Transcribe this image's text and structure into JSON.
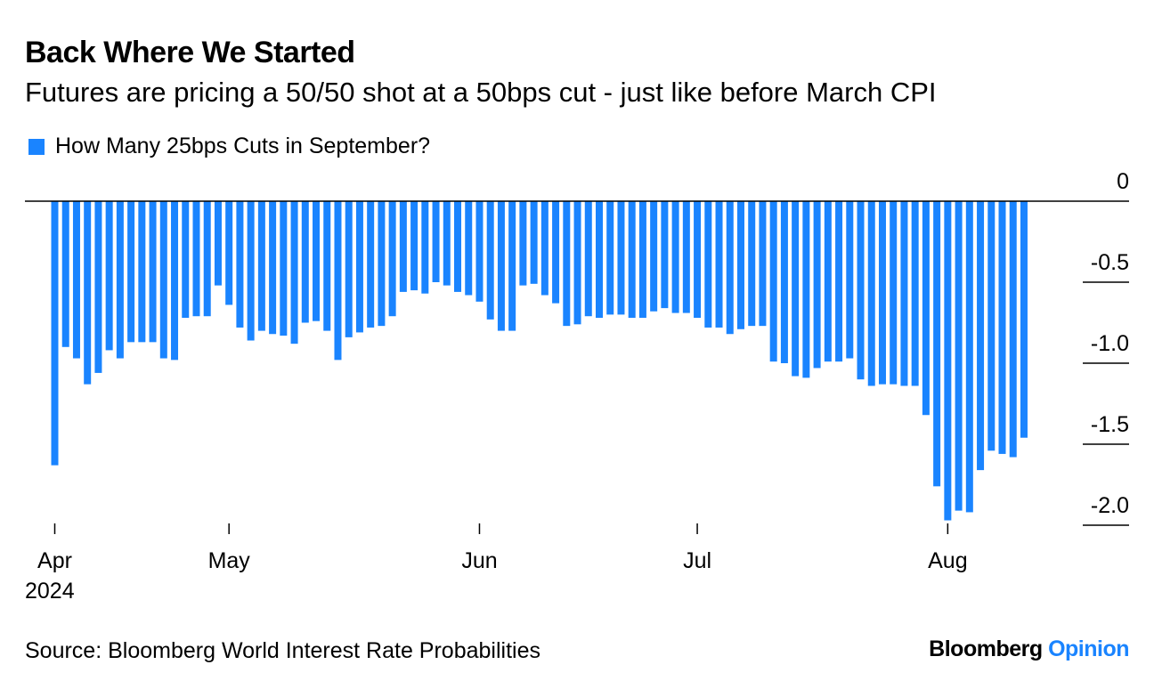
{
  "title": "Back Where We Started",
  "subtitle": "Futures are pricing a 50/50 shot at a 50bps cut - just like before March CPI",
  "source": "Source: Bloomberg World Interest Rate Probabilities",
  "logo": {
    "brand": "Bloomberg",
    "section": "Opinion"
  },
  "colors": {
    "bar": "#1a84ff",
    "accent": "#1a84ff"
  },
  "chart_data": {
    "type": "bar",
    "legend": [
      "How Many 25bps Cuts in September?"
    ],
    "legend_position": "top-left",
    "y_axis_position": "right",
    "ylim": [
      -2.1,
      0
    ],
    "y_ticks": [
      0,
      -0.5,
      -1.0,
      -1.5,
      -2.0
    ],
    "y_tick_labels": [
      "0",
      "-0.5",
      "-1.0",
      "-1.5",
      "-2.0"
    ],
    "x_ticks": [
      {
        "index": 0,
        "label": "Apr",
        "sublabel": "2024"
      },
      {
        "index": 16,
        "label": "May",
        "sublabel": ""
      },
      {
        "index": 39,
        "label": "Jun",
        "sublabel": ""
      },
      {
        "index": 59,
        "label": "Jul",
        "sublabel": ""
      },
      {
        "index": 82,
        "label": "Aug",
        "sublabel": ""
      }
    ],
    "series": [
      {
        "name": "How Many 25bps Cuts in September?",
        "values": [
          -1.63,
          -0.9,
          -0.97,
          -1.13,
          -1.06,
          -0.92,
          -0.97,
          -0.87,
          -0.87,
          -0.87,
          -0.97,
          -0.98,
          -0.72,
          -0.71,
          -0.71,
          -0.52,
          -0.64,
          -0.78,
          -0.86,
          -0.8,
          -0.82,
          -0.83,
          -0.88,
          -0.75,
          -0.74,
          -0.8,
          -0.98,
          -0.84,
          -0.81,
          -0.78,
          -0.77,
          -0.71,
          -0.56,
          -0.55,
          -0.57,
          -0.5,
          -0.52,
          -0.56,
          -0.58,
          -0.62,
          -0.73,
          -0.8,
          -0.8,
          -0.52,
          -0.51,
          -0.58,
          -0.63,
          -0.77,
          -0.76,
          -0.71,
          -0.72,
          -0.7,
          -0.7,
          -0.72,
          -0.72,
          -0.68,
          -0.66,
          -0.69,
          -0.69,
          -0.72,
          -0.78,
          -0.78,
          -0.82,
          -0.79,
          -0.77,
          -0.77,
          -0.99,
          -1.0,
          -1.08,
          -1.09,
          -1.03,
          -0.99,
          -0.99,
          -0.97,
          -1.1,
          -1.14,
          -1.13,
          -1.13,
          -1.14,
          -1.14,
          -1.32,
          -1.76,
          -1.97,
          -1.91,
          -1.92,
          -1.66,
          -1.54,
          -1.56,
          -1.58,
          -1.46
        ]
      }
    ]
  }
}
